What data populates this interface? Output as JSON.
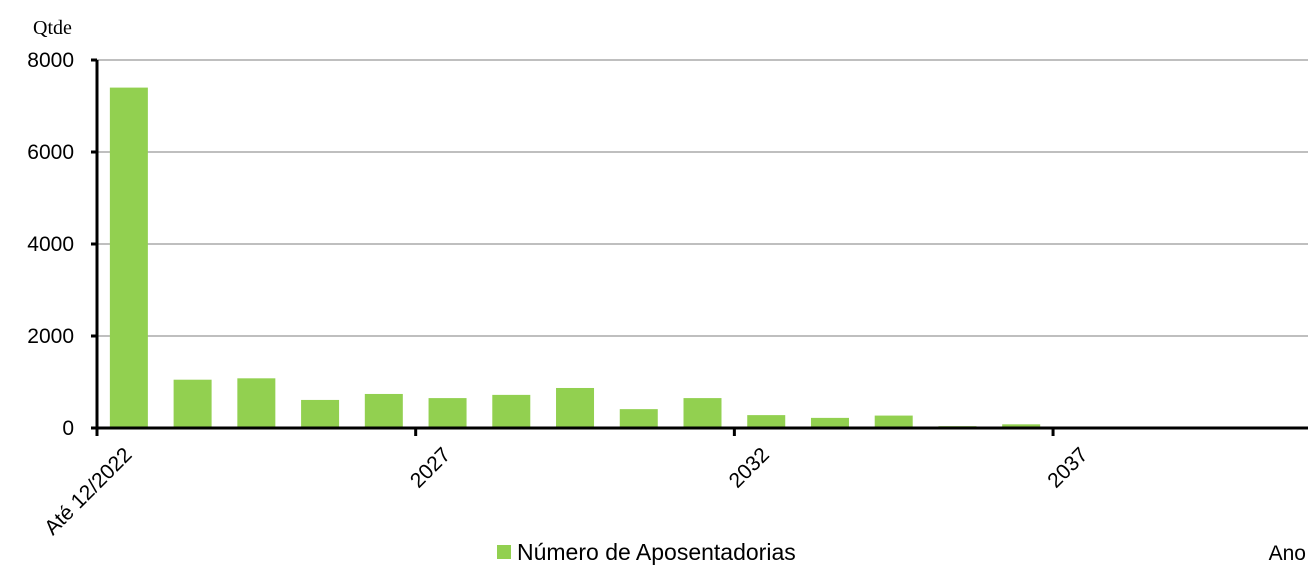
{
  "chart_data": {
    "type": "bar",
    "y_label": "Qtde",
    "x_label": "Ano",
    "categories": [
      "Até 12/2022",
      null,
      null,
      null,
      null,
      "2027",
      null,
      null,
      null,
      null,
      "2032",
      null,
      null,
      null,
      null,
      "2037",
      null,
      null,
      null
    ],
    "series": [
      {
        "name": "Número de Aposentadorias",
        "color": "#92d050",
        "values": [
          7400,
          1050,
          1080,
          610,
          740,
          650,
          720,
          870,
          410,
          650,
          280,
          220,
          270,
          40,
          80,
          0,
          0,
          0,
          0
        ]
      }
    ],
    "ylim": [
      0,
      8000
    ],
    "yticks": [
      0,
      2000,
      4000,
      6000,
      8000
    ],
    "grid": true
  }
}
